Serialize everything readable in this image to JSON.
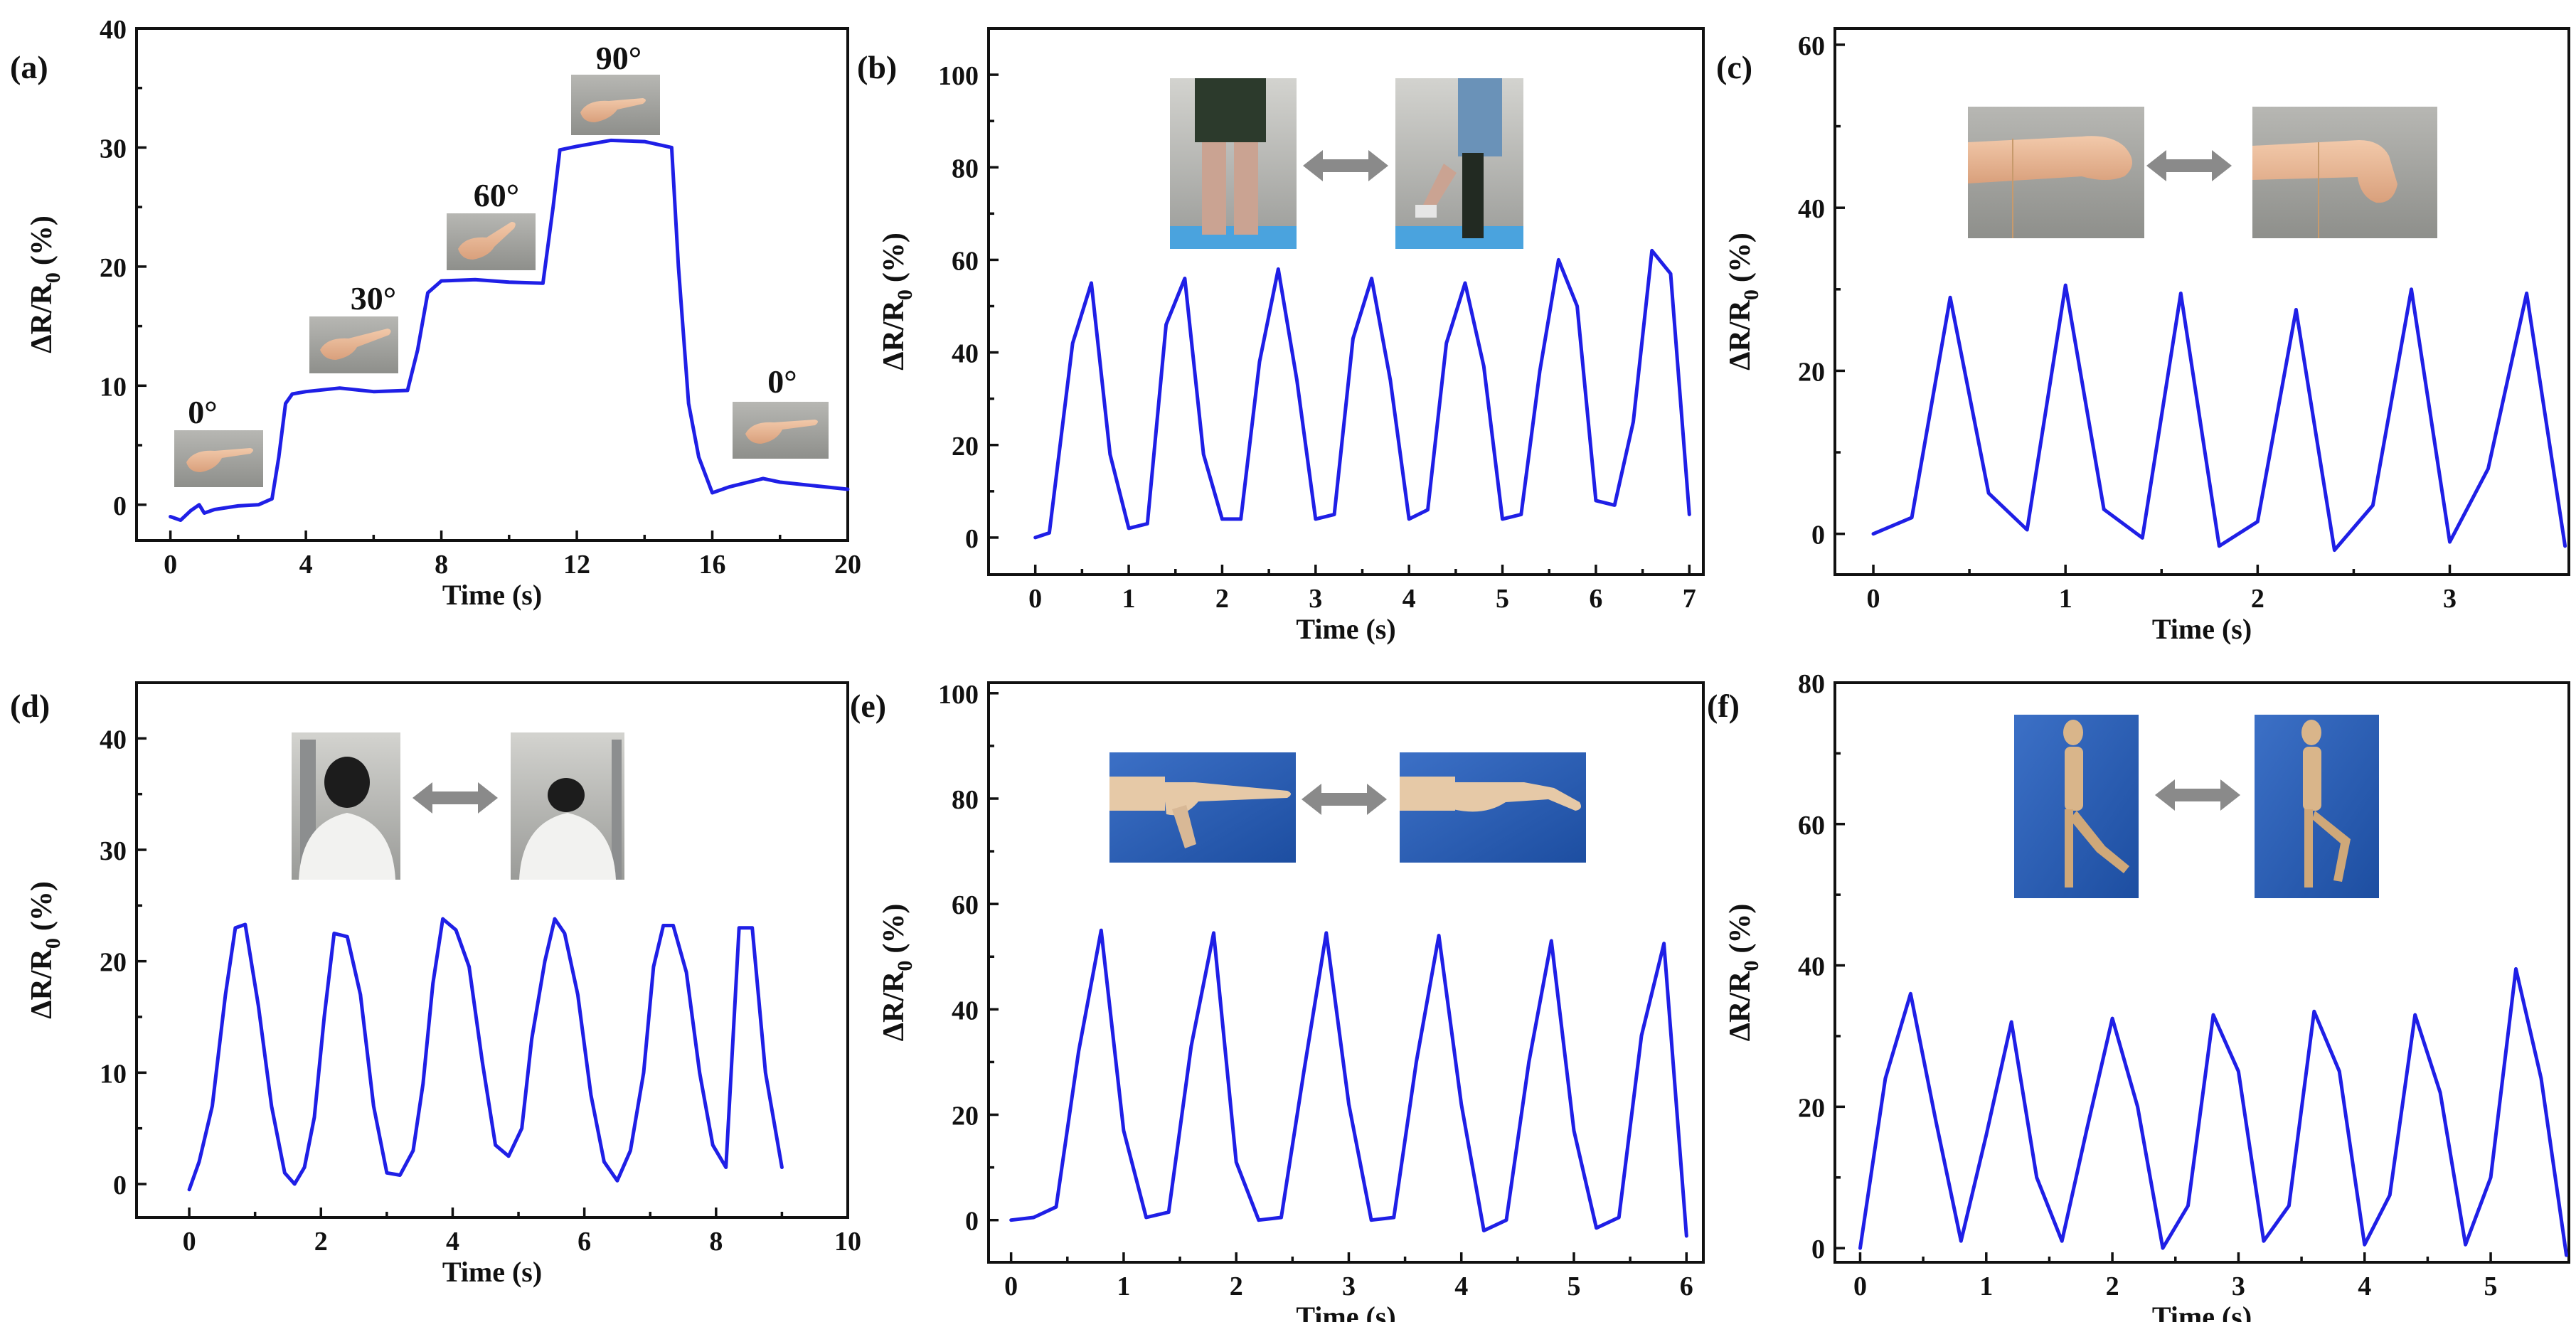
{
  "figure": {
    "ylabel": "ΔR/R",
    "ylabel_sub": "0",
    "ylabel_unit": "(%)"
  },
  "chart_data": [
    {
      "id": "a",
      "type": "line",
      "label": "(a)",
      "xlabel": "Time (s)",
      "ylabel": "ΔR/R0 (%)",
      "xlim": [
        -1,
        20
      ],
      "ylim": [
        -3,
        40
      ],
      "xticks": [
        0,
        4,
        8,
        12,
        16,
        20
      ],
      "yticks": [
        0,
        10,
        20,
        30,
        40
      ],
      "color": "#1f1fe6",
      "series": [
        {
          "name": "finger bending",
          "x": [
            0,
            0.3,
            0.6,
            0.85,
            1.0,
            1.3,
            2.0,
            2.6,
            3.0,
            3.2,
            3.4,
            3.6,
            4.0,
            5.0,
            6.0,
            7.0,
            7.3,
            7.6,
            8.0,
            9.0,
            10.0,
            11.0,
            11.3,
            11.5,
            12.0,
            13.0,
            14.0,
            14.8,
            15.0,
            15.3,
            15.6,
            16.0,
            16.5,
            17.5,
            18.0,
            19.0,
            20.0
          ],
          "y": [
            -1,
            -1.3,
            -0.5,
            0,
            -0.7,
            -0.4,
            -0.1,
            0,
            0.5,
            4,
            8.5,
            9.3,
            9.5,
            9.8,
            9.5,
            9.6,
            13,
            17.8,
            18.8,
            18.9,
            18.7,
            18.6,
            25,
            29.8,
            30.1,
            30.6,
            30.5,
            30,
            20,
            8.5,
            4,
            1,
            1.5,
            2.2,
            1.9,
            1.6,
            1.3
          ]
        }
      ],
      "annotations": [
        "0°",
        "30°",
        "60°",
        "90°",
        "0°"
      ]
    },
    {
      "id": "b",
      "type": "line",
      "label": "(b)",
      "xlabel": "Time (s)",
      "ylabel": "ΔR/R0 (%)",
      "xlim": [
        -0.5,
        7.15
      ],
      "ylim": [
        -8,
        110
      ],
      "xticks": [
        0,
        1,
        2,
        3,
        4,
        5,
        6,
        7
      ],
      "yticks": [
        0,
        20,
        40,
        60,
        80,
        100
      ],
      "color": "#1f1fe6",
      "series": [
        {
          "name": "knee bending",
          "x": [
            0,
            0.15,
            0.4,
            0.6,
            0.8,
            1.0,
            1.2,
            1.4,
            1.6,
            1.8,
            2.0,
            2.2,
            2.4,
            2.6,
            2.8,
            3.0,
            3.2,
            3.4,
            3.6,
            3.8,
            4.0,
            4.2,
            4.4,
            4.6,
            4.8,
            5.0,
            5.2,
            5.4,
            5.6,
            5.8,
            6.0,
            6.2,
            6.4,
            6.6,
            6.8,
            7.0
          ],
          "y": [
            0,
            1,
            42,
            55,
            18,
            2,
            3,
            46,
            56,
            18,
            4,
            4,
            38,
            58,
            34,
            4,
            5,
            43,
            56,
            34,
            4,
            6,
            42,
            55,
            37,
            4,
            5,
            36,
            60,
            50,
            8,
            7,
            25,
            62,
            57,
            5
          ]
        }
      ]
    },
    {
      "id": "c",
      "type": "line",
      "label": "(c)",
      "xlabel": "Time (s)",
      "ylabel": "ΔR/R0 (%)",
      "xlim": [
        -0.2,
        3.62
      ],
      "ylim": [
        -5,
        62
      ],
      "xticks": [
        0,
        1,
        2,
        3
      ],
      "yticks": [
        0,
        20,
        40,
        60
      ],
      "color": "#1f1fe6",
      "series": [
        {
          "name": "wrist bending",
          "x": [
            0,
            0.2,
            0.4,
            0.6,
            0.8,
            1.0,
            1.2,
            1.4,
            1.6,
            1.8,
            2.0,
            2.2,
            2.4,
            2.6,
            2.8,
            3.0,
            3.2,
            3.4,
            3.6
          ],
          "y": [
            0,
            2,
            29,
            5,
            0.5,
            30.5,
            3,
            -0.5,
            29.5,
            -1.5,
            1.5,
            27.5,
            -2,
            3.5,
            30,
            -1,
            8,
            29.5,
            -1.5
          ]
        }
      ]
    },
    {
      "id": "d",
      "type": "line",
      "label": "(d)",
      "xlabel": "Time (s)",
      "ylabel": "ΔR/R0 (%)",
      "xlim": [
        -0.8,
        10
      ],
      "ylim": [
        -3,
        45
      ],
      "xticks": [
        0,
        2,
        4,
        6,
        8,
        10
      ],
      "yticks": [
        0,
        10,
        20,
        30,
        40
      ],
      "color": "#1f1fe6",
      "series": [
        {
          "name": "neck bending",
          "x": [
            0,
            0.15,
            0.35,
            0.55,
            0.7,
            0.85,
            1.05,
            1.25,
            1.45,
            1.6,
            1.75,
            1.9,
            2.05,
            2.2,
            2.4,
            2.6,
            2.8,
            3.0,
            3.2,
            3.4,
            3.55,
            3.7,
            3.85,
            4.05,
            4.25,
            4.45,
            4.65,
            4.85,
            5.05,
            5.2,
            5.4,
            5.55,
            5.7,
            5.9,
            6.1,
            6.3,
            6.5,
            6.7,
            6.9,
            7.05,
            7.2,
            7.35,
            7.55,
            7.75,
            7.95,
            8.15,
            8.35,
            8.55,
            8.75,
            9.0
          ],
          "y": [
            -0.5,
            2,
            7,
            17,
            23,
            23.3,
            16,
            7,
            1,
            0,
            1.5,
            6,
            15,
            22.5,
            22.2,
            17,
            7,
            1,
            0.8,
            3,
            9,
            18,
            23.8,
            22.8,
            19.5,
            11,
            3.5,
            2.5,
            5,
            13,
            20,
            23.8,
            22.5,
            17,
            8,
            2,
            0.3,
            3,
            10,
            19.5,
            23.2,
            23.2,
            19,
            10,
            3.5,
            1.5,
            23,
            23,
            10,
            1.5
          ]
        }
      ]
    },
    {
      "id": "e",
      "type": "line",
      "label": "(e)",
      "xlabel": "Time (s)",
      "ylabel": "ΔR/R0 (%)",
      "xlim": [
        -0.2,
        6.15
      ],
      "ylim": [
        -8,
        102
      ],
      "xticks": [
        0,
        1,
        2,
        3,
        4,
        5,
        6
      ],
      "yticks": [
        0,
        20,
        40,
        60,
        80,
        100
      ],
      "color": "#1f1fe6",
      "series": [
        {
          "name": "finger bending (mannequin)",
          "x": [
            0,
            0.2,
            0.4,
            0.6,
            0.8,
            1.0,
            1.2,
            1.4,
            1.6,
            1.8,
            2.0,
            2.2,
            2.4,
            2.6,
            2.8,
            3.0,
            3.2,
            3.4,
            3.6,
            3.8,
            4.0,
            4.2,
            4.4,
            4.6,
            4.8,
            5.0,
            5.2,
            5.4,
            5.6,
            5.8,
            6.0
          ],
          "y": [
            0,
            0.5,
            2.5,
            32,
            55,
            17,
            0.5,
            1.5,
            33,
            54.5,
            11,
            0,
            0.5,
            28,
            54.5,
            22,
            0,
            0.5,
            30,
            54,
            22,
            -2,
            0,
            30,
            53,
            17,
            -1.5,
            0.5,
            35,
            52.5,
            -3
          ]
        }
      ]
    },
    {
      "id": "f",
      "type": "line",
      "label": "(f)",
      "xlabel": "Time (s)",
      "ylabel": "ΔR/R0 (%)",
      "xlim": [
        -0.2,
        5.62
      ],
      "ylim": [
        -2,
        80
      ],
      "xticks": [
        0,
        1,
        2,
        3,
        4,
        5
      ],
      "yticks": [
        0,
        20,
        40,
        60,
        80
      ],
      "color": "#1f1fe6",
      "series": [
        {
          "name": "knee bending (mannequin)",
          "x": [
            0,
            0.2,
            0.4,
            0.6,
            0.8,
            1.0,
            1.2,
            1.4,
            1.6,
            1.8,
            2.0,
            2.2,
            2.4,
            2.6,
            2.8,
            3.0,
            3.2,
            3.4,
            3.6,
            3.8,
            4.0,
            4.2,
            4.4,
            4.6,
            4.8,
            5.0,
            5.2,
            5.4,
            5.6
          ],
          "y": [
            0,
            24,
            36,
            18,
            1,
            16,
            32,
            10,
            1,
            17,
            32.5,
            20,
            0,
            6,
            33,
            25,
            1,
            6,
            33.5,
            25,
            0.5,
            7.5,
            33,
            22,
            0.5,
            10,
            39.5,
            24,
            -1
          ]
        }
      ]
    }
  ]
}
